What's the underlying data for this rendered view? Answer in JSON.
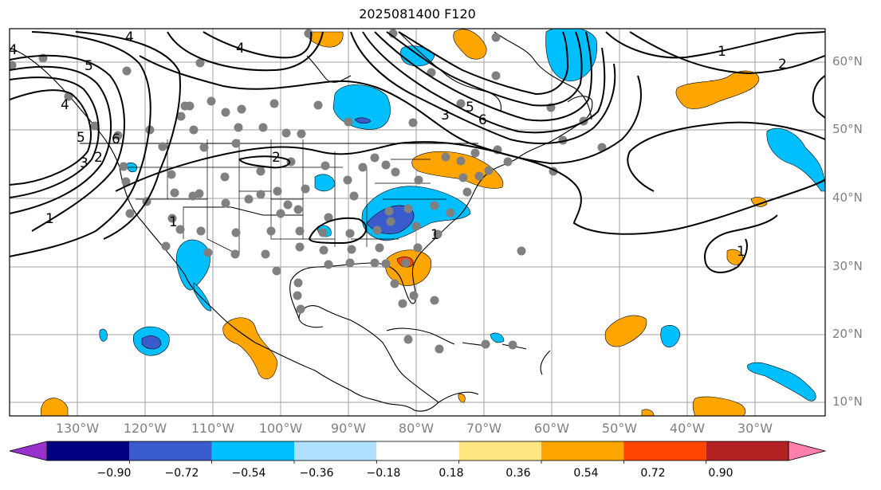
{
  "title": "2025081400 F120",
  "latitude_labels": [
    "60°N",
    "50°N",
    "40°N",
    "30°N",
    "20°N",
    "10°N"
  ],
  "longitude_labels": [
    "130°W",
    "120°W",
    "110°W",
    "100°W",
    "90°W",
    "80°W",
    "70°W",
    "60°W",
    "50°W",
    "40°W",
    "30°W"
  ],
  "contour_labels": [
    "4",
    "4",
    "4",
    "4",
    "5",
    "5",
    "2",
    "3",
    "6",
    "1",
    "1",
    "3",
    "5",
    "6",
    "2",
    "2",
    "1",
    "1",
    "1"
  ],
  "colorbar": {
    "ticks": [
      "−0.90",
      "−0.72",
      "−0.54",
      "−0.36",
      "−0.18",
      "0.18",
      "0.36",
      "0.54",
      "0.72",
      "0.90"
    ],
    "colors": [
      "#9932cc",
      "#000080",
      "#3a5bcc",
      "#00bfff",
      "#b0e0ff",
      "#ffffff",
      "#ffe680",
      "#ffa500",
      "#ff4500",
      "#b22222",
      "#ff80aa"
    ]
  }
}
